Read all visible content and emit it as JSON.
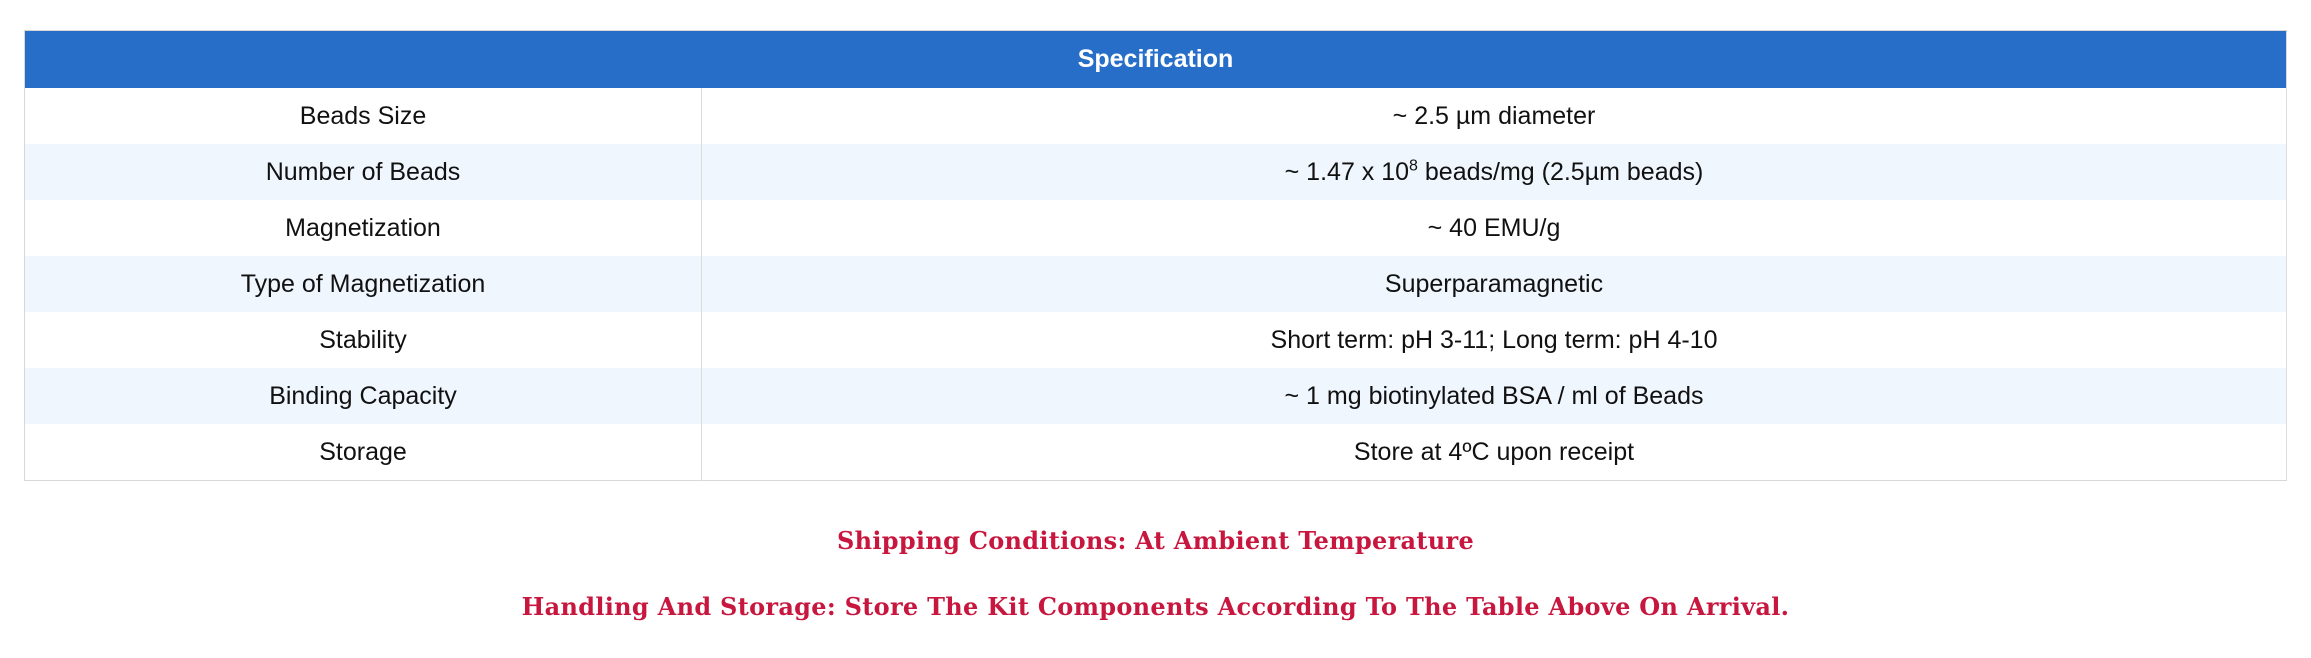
{
  "table": {
    "header": "Specification",
    "rows": [
      {
        "label": "Beads Size",
        "value": "~ 2.5 µm diameter"
      },
      {
        "label": "Number of Beads",
        "value_pre": "~ 1.47 x 10",
        "value_sup": "8",
        "value_post": " beads/mg (2.5µm beads)"
      },
      {
        "label": "Magnetization",
        "value": "~ 40 EMU/g"
      },
      {
        "label": "Type of Magnetization",
        "value": "Superparamagnetic"
      },
      {
        "label": "Stability",
        "value": "Short term: pH 3-11; Long term: pH 4-10"
      },
      {
        "label": "Binding Capacity",
        "value": "~ 1 mg biotinylated BSA / ml of Beads"
      },
      {
        "label": "Storage",
        "value": "Store at 4ºC upon receipt"
      }
    ]
  },
  "notes": {
    "shipping": "Shipping Conditions: At Ambient Temperature",
    "handling": "Handling And Storage: Store The Kit Components According To The Table Above On Arrival."
  },
  "colors": {
    "header_bg": "#276ec8",
    "alt_row": "#eff6fe",
    "note_text": "#c8173f"
  }
}
